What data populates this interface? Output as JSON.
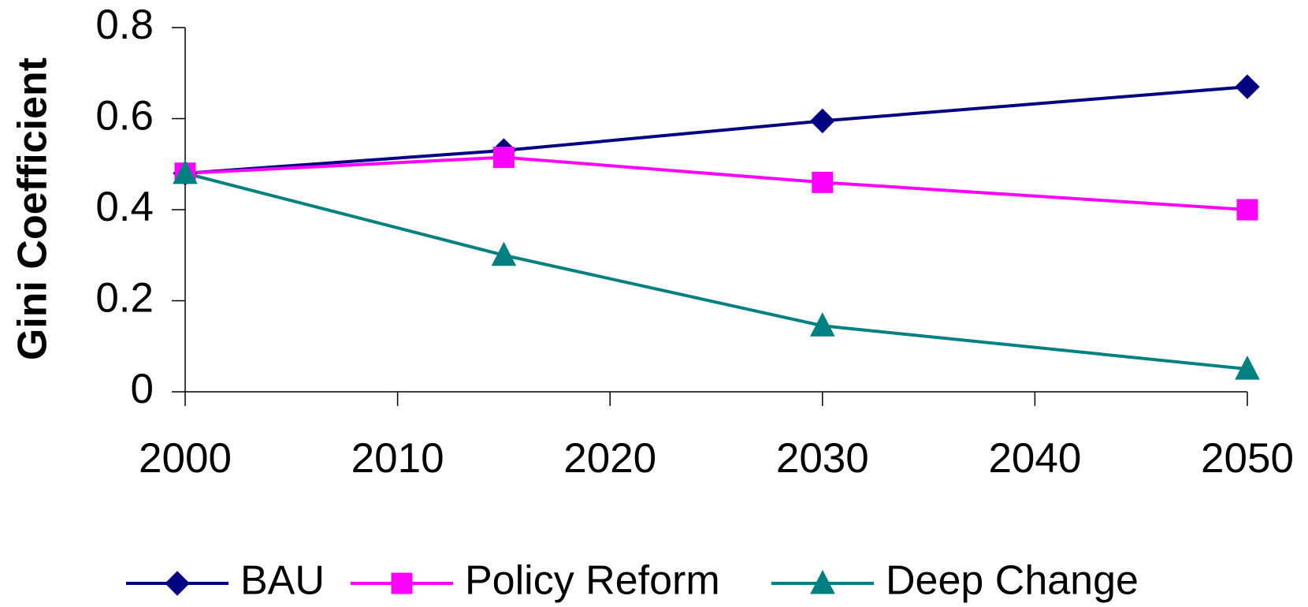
{
  "chart_data": {
    "type": "line",
    "y_label": "Gini Coefficient",
    "x": [
      2000,
      2015,
      2030,
      2050
    ],
    "series": [
      {
        "name": "BAU",
        "color": "#000080",
        "marker": "diamond",
        "values": [
          0.48,
          0.53,
          0.595,
          0.67
        ]
      },
      {
        "name": "Policy Reform",
        "color": "#ff00ff",
        "marker": "square",
        "values": [
          0.48,
          0.515,
          0.46,
          0.4
        ]
      },
      {
        "name": "Deep Change",
        "color": "#008080",
        "marker": "triangle",
        "values": [
          0.48,
          0.3,
          0.145,
          0.05
        ]
      }
    ],
    "xlim": [
      2000,
      2050
    ],
    "xticks": [
      2000,
      2010,
      2020,
      2030,
      2040,
      2050
    ],
    "ylim": [
      0,
      0.8
    ],
    "yticks": [
      0,
      0.2,
      0.4,
      0.6,
      0.8
    ],
    "grid": false,
    "legend": "bottom"
  }
}
